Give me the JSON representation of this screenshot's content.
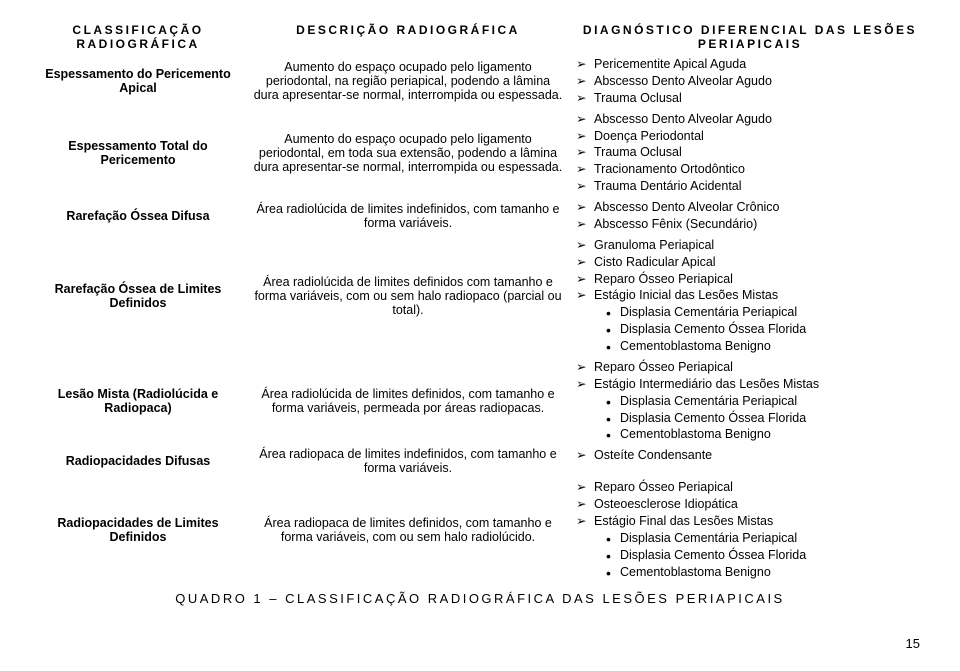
{
  "headers": {
    "col1": "CLASSIFICAÇÃO RADIOGRÁFICA",
    "col2": "DESCRIÇÃO RADIOGRÁFICA",
    "col3": "DIAGNÓSTICO DIFERENCIAL DAS LESÕES PERIAPICAIS"
  },
  "rows": [
    {
      "col1": "Espessamento do Pericemento Apical",
      "col2": "Aumento do espaço ocupado pelo ligamento periodontal, na região periapical, podendo a lâmina dura apresentar-se normal, interrompida ou espessada.",
      "arrows": [
        "Pericementite Apical Aguda",
        "Abscesso Dento Alveolar Agudo",
        "Trauma Oclusal"
      ]
    },
    {
      "col1": "Espessamento Total do Pericemento",
      "col2": "Aumento do espaço ocupado pelo ligamento periodontal, em toda sua extensão, podendo a lâmina dura apresentar-se normal, interrompida ou espessada.",
      "arrows": [
        "Abscesso Dento Alveolar Agudo",
        "Doença Periodontal",
        "Trauma Oclusal",
        "Tracionamento Ortodôntico",
        "Trauma Dentário Acidental"
      ]
    },
    {
      "col1": "Rarefação Óssea Difusa",
      "col2": "Área radiolúcida de limites indefinidos, com tamanho e forma variáveis.",
      "arrows": [
        "Abscesso Dento Alveolar Crônico",
        "Abscesso Fênix (Secundário)"
      ]
    },
    {
      "col1": "Rarefação Óssea de Limites Definidos",
      "col2": "Área radiolúcida de limites definidos com tamanho e forma variáveis, com ou sem halo radiopaco (parcial ou total).",
      "arrows": [
        "Granuloma Periapical",
        "Cisto Radicular Apical",
        "Reparo Ósseo Periapical",
        " Estágio Inicial das Lesões Mistas"
      ],
      "dots": [
        "Displasia Cementária Periapical",
        "Displasia Cemento Óssea Florida",
        "Cementoblastoma Benigno"
      ]
    },
    {
      "col1": "Lesão Mista (Radiolúcida e Radiopaca)",
      "col2": "Área radiolúcida de limites definidos, com tamanho e forma variáveis, permeada por  áreas radiopacas.",
      "arrows": [
        "Reparo Ósseo Periapical",
        "Estágio Intermediário das Lesões Mistas"
      ],
      "dots": [
        "Displasia Cementária Periapical",
        "Displasia Cemento Óssea Florida",
        "Cementoblastoma Benigno"
      ]
    },
    {
      "col1": "Radiopacidades Difusas",
      "col2": "Área radiopaca de limites indefinidos, com tamanho e forma variáveis.",
      "arrows": [
        "Osteíte Condensante"
      ]
    },
    {
      "col1": "Radiopacidades de Limites Definidos",
      "col2": "Área radiopaca de limites definidos, com tamanho e forma variáveis, com ou sem halo radiolúcido.",
      "arrows": [
        "Reparo Ósseo Periapical",
        "Osteoesclerose Idiopática",
        "Estágio Final das Lesões Mistas"
      ],
      "dots": [
        "Displasia Cementária Periapical",
        "Displasia Cemento Óssea Florida",
        "Cementoblastoma Benigno"
      ]
    }
  ],
  "caption": "QUADRO 1 – CLASSIFICAÇÃO RADIOGRÁFICA DAS LESÕES PERIAPICAIS",
  "pageNumber": "15"
}
